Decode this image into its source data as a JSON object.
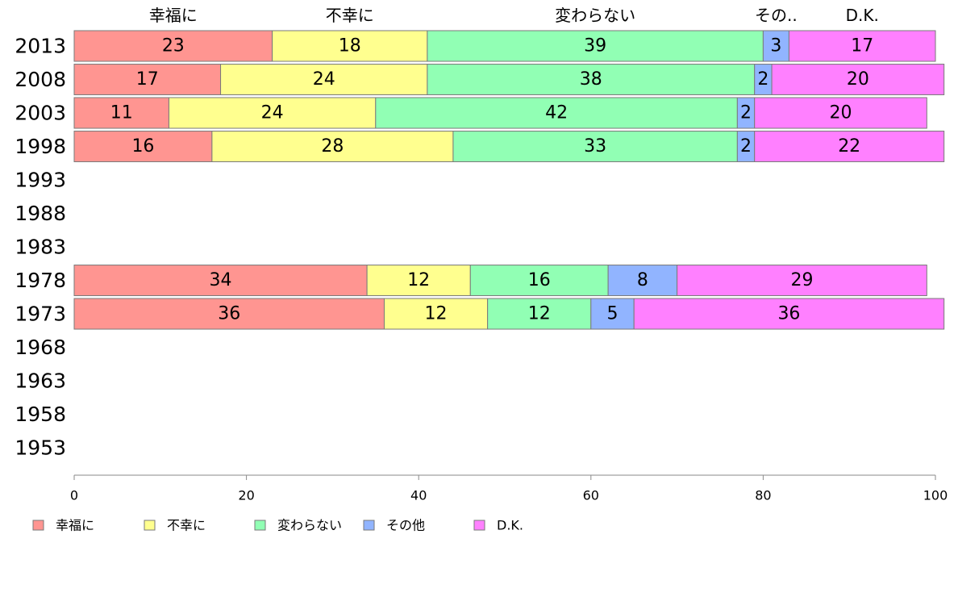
{
  "chart_data": {
    "type": "bar",
    "orientation": "horizontal",
    "stacked": true,
    "categories": [
      "2013",
      "2008",
      "2003",
      "1998",
      "1993",
      "1988",
      "1983",
      "1978",
      "1973",
      "1968",
      "1963",
      "1958",
      "1953"
    ],
    "series": [
      {
        "name": "幸福に",
        "top_label": "幸福に",
        "color": "#ff9591",
        "values": [
          23,
          17,
          11,
          16,
          null,
          null,
          null,
          34,
          36,
          null,
          null,
          null,
          null
        ]
      },
      {
        "name": "不幸に",
        "top_label": "不幸に",
        "color": "#ffff8f",
        "values": [
          18,
          24,
          24,
          28,
          null,
          null,
          null,
          12,
          12,
          null,
          null,
          null,
          null
        ]
      },
      {
        "name": "変わらない",
        "top_label": "変わらない",
        "color": "#91ffb4",
        "values": [
          39,
          38,
          42,
          33,
          null,
          null,
          null,
          16,
          12,
          null,
          null,
          null,
          null
        ]
      },
      {
        "name": "その他",
        "top_label": "その..",
        "color": "#91b4ff",
        "values": [
          3,
          2,
          2,
          2,
          null,
          null,
          null,
          8,
          5,
          null,
          null,
          null,
          null
        ]
      },
      {
        "name": "D.K.",
        "top_label": "D.K.",
        "color": "#ff80ff",
        "values": [
          17,
          20,
          20,
          22,
          null,
          null,
          null,
          29,
          36,
          null,
          null,
          null,
          null
        ]
      }
    ],
    "x_ticks": [
      0,
      20,
      40,
      60,
      80,
      100
    ],
    "xlim": [
      0,
      100
    ],
    "legend_position": "bottom-left",
    "grid": false
  }
}
